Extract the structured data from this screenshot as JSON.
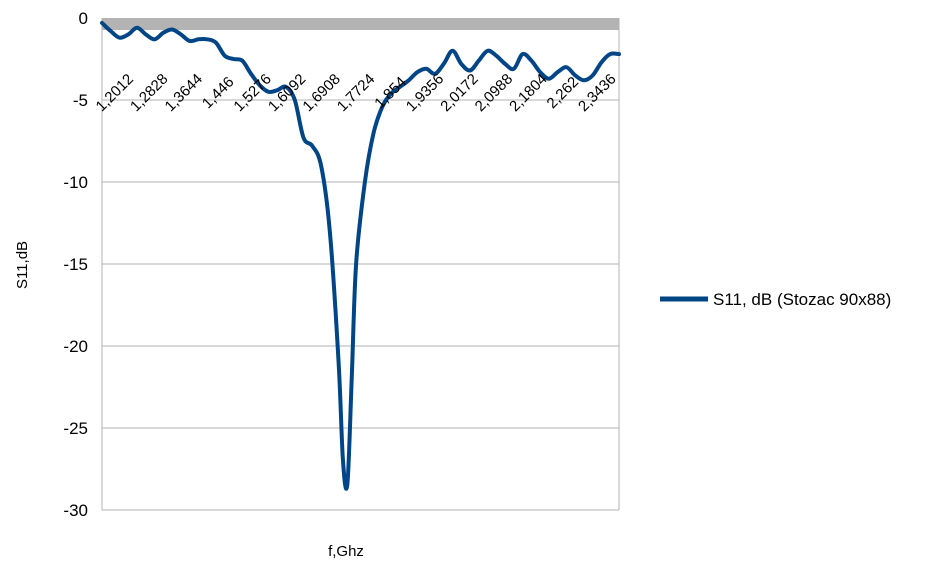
{
  "chart_data": {
    "type": "line",
    "xlabel": "f,Ghz",
    "ylabel": "S11,dB",
    "ylim": [
      -30,
      0
    ],
    "y_ticks": [
      "0",
      "-5",
      "-10",
      "-15",
      "-20",
      "-25",
      "-30"
    ],
    "x_tick_labels": [
      "1,2012",
      "1,2828",
      "1,3644",
      "1,446",
      "1,5276",
      "1,6092",
      "1,6908",
      "1,7724",
      "1,854",
      "1,9356",
      "2,0172",
      "2,0988",
      "2,1804",
      "2,262",
      "2,3436"
    ],
    "grid": "horizontal",
    "legend_position": "right",
    "series": [
      {
        "name": "S11, dB (Stozac 90x88)",
        "color": "#004586",
        "x": [
          1.2012,
          1.2216,
          1.242,
          1.2624,
          1.2828,
          1.3032,
          1.3236,
          1.344,
          1.3644,
          1.3848,
          1.4052,
          1.4256,
          1.446,
          1.4664,
          1.4868,
          1.5072,
          1.5276,
          1.548,
          1.5684,
          1.5888,
          1.6092,
          1.6296,
          1.65,
          1.6704,
          1.6908,
          1.7112,
          1.7316,
          1.752,
          1.7622,
          1.7724,
          1.7826,
          1.7928,
          1.8132,
          1.8336,
          1.854,
          1.8744,
          1.8948,
          1.9152,
          1.9356,
          1.956,
          1.9764,
          1.9968,
          2.0172,
          2.0376,
          2.058,
          2.0784,
          2.0988,
          2.1192,
          2.1396,
          2.16,
          2.1804,
          2.2008,
          2.2212,
          2.2416,
          2.262,
          2.2824,
          2.3028,
          2.3232,
          2.3436,
          2.364,
          2.3844,
          2.4048
        ],
        "values": [
          -0.3,
          -0.8,
          -1.2,
          -1.0,
          -0.6,
          -1.0,
          -1.3,
          -0.9,
          -0.7,
          -1.0,
          -1.4,
          -1.3,
          -1.3,
          -1.5,
          -2.3,
          -2.5,
          -2.6,
          -3.4,
          -4.1,
          -4.5,
          -4.4,
          -4.2,
          -5.0,
          -7.3,
          -7.8,
          -9.0,
          -13.0,
          -21.0,
          -27.0,
          -28.4,
          -22.0,
          -15.0,
          -10.0,
          -7.0,
          -5.4,
          -4.6,
          -4.2,
          -3.8,
          -3.3,
          -3.1,
          -3.4,
          -2.8,
          -2.0,
          -2.8,
          -3.2,
          -2.6,
          -2.0,
          -2.3,
          -2.8,
          -3.1,
          -2.2,
          -2.6,
          -3.3,
          -3.7,
          -3.3,
          -3.0,
          -3.5,
          -3.8,
          -3.5,
          -2.7,
          -2.2,
          -2.2
        ]
      }
    ]
  }
}
